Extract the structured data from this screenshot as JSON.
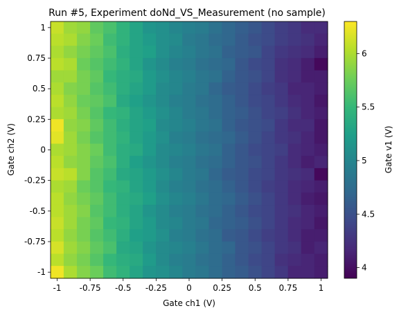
{
  "chart_data": {
    "type": "heatmap",
    "title": "Run #5, Experiment doNd_VS_Measurement (no sample)",
    "xlabel": "Gate ch1 (V)",
    "ylabel": "Gate ch2 (V)",
    "colorbar_label": "Gate v1 (V)",
    "xlim": [
      -1.05,
      1.05
    ],
    "ylim": [
      -1.05,
      1.05
    ],
    "x": [
      -1.0,
      -0.9,
      -0.8,
      -0.7,
      -0.6,
      -0.5,
      -0.4,
      -0.3,
      -0.2,
      -0.1,
      0.0,
      0.1,
      0.2,
      0.3,
      0.4,
      0.5,
      0.6,
      0.7,
      0.8,
      0.9,
      1.0
    ],
    "y": [
      1.0,
      0.9,
      0.8,
      0.7,
      0.6,
      0.5,
      0.4,
      0.3,
      0.2,
      0.1,
      0.0,
      -0.1,
      -0.2,
      -0.3,
      -0.4,
      -0.5,
      -0.6,
      -0.7,
      -0.8,
      -0.9,
      -1.0
    ],
    "xticks": [
      {
        "value": -1.0,
        "label": "-1"
      },
      {
        "value": -0.75,
        "label": "-0.75"
      },
      {
        "value": -0.5,
        "label": "-0.5"
      },
      {
        "value": -0.25,
        "label": "-0.25"
      },
      {
        "value": 0.0,
        "label": "0"
      },
      {
        "value": 0.25,
        "label": "0.25"
      },
      {
        "value": 0.5,
        "label": "0.5"
      },
      {
        "value": 0.75,
        "label": "0.75"
      },
      {
        "value": 1.0,
        "label": "1"
      }
    ],
    "yticks": [
      {
        "value": 1.0,
        "label": "1"
      },
      {
        "value": 0.75,
        "label": "0.75"
      },
      {
        "value": 0.5,
        "label": "0.5"
      },
      {
        "value": 0.25,
        "label": "0.25"
      },
      {
        "value": 0.0,
        "label": "0"
      },
      {
        "value": -0.25,
        "label": "-0.25"
      },
      {
        "value": -0.5,
        "label": "-0.5"
      },
      {
        "value": -0.75,
        "label": "-0.75"
      },
      {
        "value": -1.0,
        "label": "-1"
      }
    ],
    "colorbar": {
      "min": 3.9,
      "max": 6.3,
      "ticks": [
        {
          "value": 4.0,
          "label": "4"
        },
        {
          "value": 4.5,
          "label": "4.5"
        },
        {
          "value": 5.0,
          "label": "5"
        },
        {
          "value": 5.5,
          "label": "5.5"
        },
        {
          "value": 6.0,
          "label": "6"
        }
      ]
    },
    "colormap": "viridis",
    "viridis_stops": [
      "#440154",
      "#482878",
      "#3e4989",
      "#31688e",
      "#26828e",
      "#1f9e89",
      "#35b779",
      "#6ece58",
      "#b5de2b",
      "#fde725"
    ],
    "z": [
      [
        6.1,
        5.95,
        5.9,
        5.7,
        5.6,
        5.45,
        5.3,
        5.15,
        5.1,
        5.0,
        4.95,
        4.9,
        4.8,
        4.7,
        4.62,
        4.55,
        4.45,
        4.35,
        4.3,
        4.2,
        4.2
      ],
      [
        6.05,
        6.0,
        5.85,
        5.75,
        5.55,
        5.45,
        5.3,
        5.2,
        5.1,
        5.05,
        4.9,
        4.85,
        4.75,
        4.7,
        4.6,
        4.5,
        4.45,
        4.35,
        4.3,
        4.25,
        4.15
      ],
      [
        6.0,
        5.9,
        5.8,
        5.7,
        5.6,
        5.4,
        5.3,
        5.25,
        5.1,
        5.0,
        4.95,
        4.85,
        4.8,
        4.65,
        4.6,
        4.55,
        4.4,
        4.3,
        4.25,
        4.2,
        4.1
      ],
      [
        6.05,
        6.0,
        5.75,
        5.65,
        5.55,
        5.45,
        5.3,
        5.15,
        5.05,
        4.95,
        4.9,
        4.8,
        4.75,
        4.7,
        4.55,
        4.45,
        4.4,
        4.25,
        4.2,
        4.1,
        3.95
      ],
      [
        5.95,
        5.95,
        5.8,
        5.7,
        5.5,
        5.4,
        5.35,
        5.2,
        5.1,
        5.0,
        4.95,
        4.85,
        4.8,
        4.65,
        4.55,
        4.5,
        4.4,
        4.25,
        4.2,
        4.1,
        4.1
      ],
      [
        6.0,
        5.85,
        5.8,
        5.65,
        5.55,
        5.4,
        5.3,
        5.2,
        5.05,
        5.0,
        4.9,
        4.85,
        4.7,
        4.6,
        4.55,
        4.45,
        4.35,
        4.3,
        4.15,
        4.15,
        4.1
      ],
      [
        6.05,
        5.9,
        5.75,
        5.7,
        5.6,
        5.35,
        5.25,
        5.15,
        5.05,
        4.95,
        4.9,
        4.8,
        4.75,
        4.65,
        4.55,
        4.45,
        4.4,
        4.3,
        4.2,
        4.15,
        4.05
      ],
      [
        6.0,
        5.95,
        5.8,
        5.65,
        5.5,
        5.45,
        5.3,
        5.2,
        5.1,
        5.0,
        4.9,
        4.85,
        4.75,
        4.65,
        4.6,
        4.5,
        4.4,
        4.35,
        4.25,
        4.15,
        4.1
      ],
      [
        6.25,
        5.9,
        5.85,
        5.7,
        5.55,
        5.4,
        5.3,
        5.25,
        5.05,
        5.0,
        4.95,
        4.85,
        4.8,
        4.65,
        4.55,
        4.5,
        4.45,
        4.3,
        4.2,
        4.2,
        4.05
      ],
      [
        6.2,
        5.95,
        5.8,
        5.65,
        5.55,
        5.45,
        5.3,
        5.2,
        5.1,
        4.95,
        4.9,
        4.8,
        4.75,
        4.7,
        4.6,
        4.5,
        4.4,
        4.3,
        4.25,
        4.15,
        4.05
      ],
      [
        6.0,
        5.95,
        5.85,
        5.75,
        5.55,
        5.4,
        5.35,
        5.2,
        5.05,
        5.0,
        4.95,
        4.85,
        4.8,
        4.65,
        4.55,
        4.45,
        4.4,
        4.35,
        4.2,
        4.15,
        4.1
      ],
      [
        6.05,
        5.9,
        5.85,
        5.7,
        5.6,
        5.4,
        5.25,
        5.15,
        5.05,
        4.95,
        4.9,
        4.8,
        4.75,
        4.65,
        4.55,
        4.5,
        4.4,
        4.3,
        4.2,
        4.1,
        4.15
      ],
      [
        6.1,
        6.05,
        5.85,
        5.65,
        5.55,
        5.35,
        5.3,
        5.2,
        5.1,
        5.0,
        4.9,
        4.85,
        4.7,
        4.6,
        4.55,
        4.45,
        4.4,
        4.3,
        4.25,
        4.2,
        3.95
      ],
      [
        6.0,
        5.95,
        5.75,
        5.65,
        5.5,
        5.45,
        5.3,
        5.2,
        5.05,
        4.95,
        4.9,
        4.8,
        4.75,
        4.65,
        4.55,
        4.45,
        4.35,
        4.3,
        4.2,
        4.15,
        4.1
      ],
      [
        6.05,
        5.9,
        5.8,
        5.7,
        5.55,
        5.4,
        5.35,
        5.25,
        5.1,
        5.0,
        4.95,
        4.85,
        4.75,
        4.7,
        4.6,
        4.5,
        4.4,
        4.3,
        4.2,
        4.1,
        4.05
      ],
      [
        6.05,
        5.95,
        5.85,
        5.65,
        5.55,
        5.4,
        5.3,
        5.15,
        5.05,
        4.95,
        4.9,
        4.8,
        4.75,
        4.65,
        4.55,
        4.45,
        4.4,
        4.3,
        4.25,
        4.15,
        4.1
      ],
      [
        6.1,
        5.95,
        5.8,
        5.7,
        5.5,
        5.45,
        5.3,
        5.2,
        5.05,
        5.0,
        4.9,
        4.85,
        4.7,
        4.65,
        4.6,
        4.5,
        4.4,
        4.3,
        4.2,
        4.15,
        4.05
      ],
      [
        6.05,
        5.9,
        5.8,
        5.65,
        5.55,
        5.4,
        5.25,
        5.2,
        5.1,
        4.95,
        4.9,
        4.8,
        4.75,
        4.6,
        4.55,
        4.45,
        4.35,
        4.3,
        4.2,
        4.1,
        4.1
      ],
      [
        6.15,
        5.95,
        5.85,
        5.7,
        5.6,
        5.35,
        5.3,
        5.15,
        5.05,
        5.0,
        4.95,
        4.85,
        4.75,
        4.7,
        4.55,
        4.5,
        4.4,
        4.3,
        4.25,
        4.1,
        4.15
      ],
      [
        6.05,
        5.9,
        5.8,
        5.65,
        5.5,
        5.4,
        5.35,
        5.2,
        5.05,
        4.95,
        4.9,
        4.8,
        4.75,
        4.65,
        4.55,
        4.45,
        4.4,
        4.25,
        4.2,
        4.15,
        4.1
      ],
      [
        6.25,
        6.0,
        5.85,
        5.75,
        5.55,
        5.45,
        5.3,
        5.15,
        5.1,
        5.0,
        4.9,
        4.85,
        4.75,
        4.65,
        4.6,
        4.5,
        4.4,
        4.3,
        4.15,
        4.15,
        4.1
      ]
    ]
  }
}
